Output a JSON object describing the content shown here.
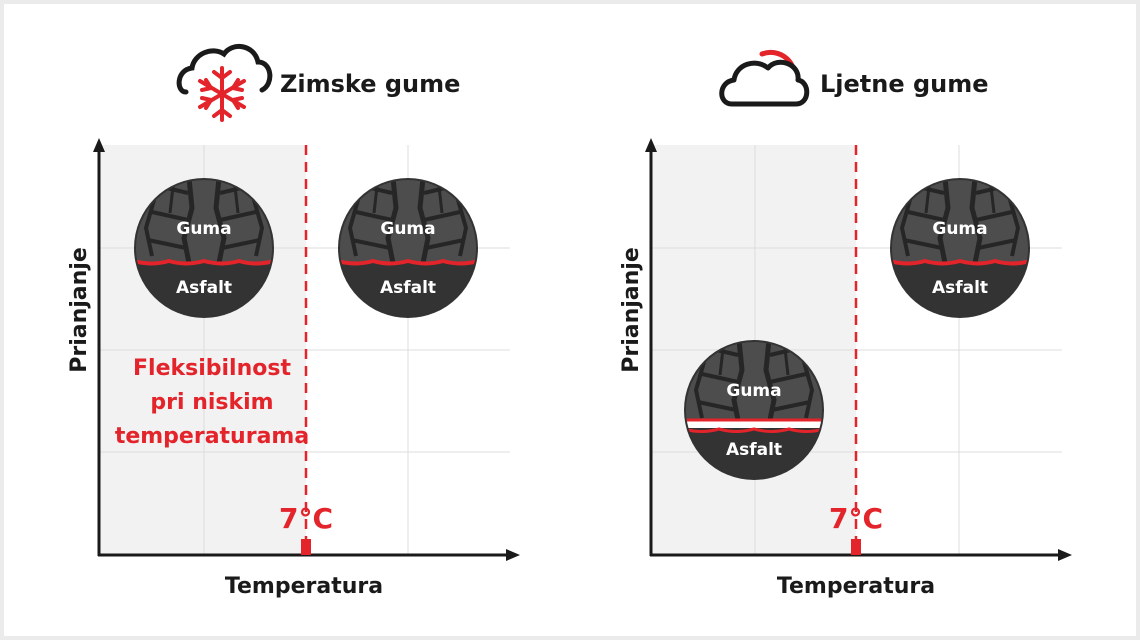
{
  "colors": {
    "accent": "#e3242b",
    "dark": "#1a1a1a",
    "tire": "#333333",
    "tread": "#4d4d4d",
    "shaded_region": "#f2f2f2",
    "grid": "#dcdcdc"
  },
  "panels": [
    {
      "icon": "snow-cloud-icon",
      "title": "Zimske gume",
      "y_label": "Prianjanje",
      "x_label": "Temperatura",
      "threshold": "7°C",
      "annotation": [
        "Fleksibilnost",
        "pri niskim",
        "temperaturama"
      ],
      "tires": [
        {
          "side": "cold",
          "grip": "high",
          "top": "Guma",
          "bottom": "Asfalt"
        },
        {
          "side": "warm",
          "grip": "high",
          "top": "Guma",
          "bottom": "Asfalt"
        }
      ]
    },
    {
      "icon": "sun-cloud-icon",
      "title": "Ljetne gume",
      "y_label": "Prianjanje",
      "x_label": "Temperatura",
      "threshold": "7°C",
      "annotation": [],
      "tires": [
        {
          "side": "cold",
          "grip": "low",
          "top": "Guma",
          "bottom": "Asfalt"
        },
        {
          "side": "warm",
          "grip": "high",
          "top": "Guma",
          "bottom": "Asfalt"
        }
      ]
    }
  ]
}
